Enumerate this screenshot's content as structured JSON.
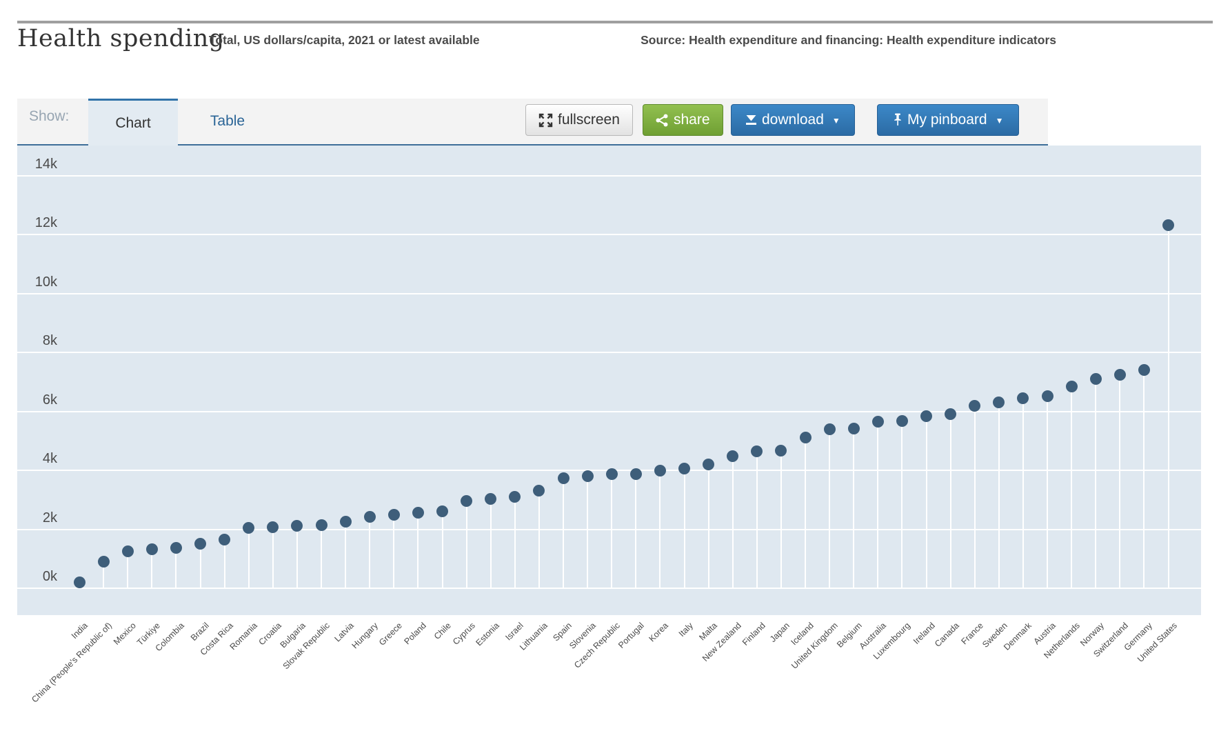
{
  "header": {
    "title": "Health spending",
    "subtitle": "Total, US dollars/capita, 2021 or latest available",
    "source": "Source: Health expenditure and financing: Health expenditure indicators"
  },
  "toolbar": {
    "show_label": "Show:",
    "tabs": {
      "chart": "Chart",
      "table": "Table"
    },
    "buttons": {
      "fullscreen": "fullscreen",
      "share": "share",
      "download": "download",
      "pinboard": "My pinboard"
    }
  },
  "colors": {
    "dot": "#3e5e7a",
    "plot_background": "#dfe8f0",
    "gridline": "#ffffff",
    "button_blue": "#2f74ad",
    "button_green": "#79ab3d",
    "tab_accent": "#3173a9"
  },
  "chart_data": {
    "type": "scatter",
    "title": "Health spending",
    "subtitle": "Total, US dollars/capita, 2021 or latest available",
    "unit": "US dollars/capita",
    "legend": "none",
    "grid": "horizontal",
    "ylim": [
      0,
      14000
    ],
    "yticks": [
      "0k",
      "2k",
      "4k",
      "6k",
      "8k",
      "10k",
      "12k",
      "14k"
    ],
    "categories": [
      "India",
      "China (People's Republic of)",
      "Mexico",
      "Türkiye",
      "Colombia",
      "Brazil",
      "Costa Rica",
      "Romania",
      "Croatia",
      "Bulgaria",
      "Slovak Republic",
      "Latvia",
      "Hungary",
      "Greece",
      "Poland",
      "Chile",
      "Cyprus",
      "Estonia",
      "Israel",
      "Lithuania",
      "Spain",
      "Slovenia",
      "Czech Republic",
      "Portugal",
      "Korea",
      "Italy",
      "Malta",
      "New Zealand",
      "Finland",
      "Japan",
      "Iceland",
      "United Kingdom",
      "Belgium",
      "Australia",
      "Luxembourg",
      "Ireland",
      "Canada",
      "France",
      "Sweden",
      "Denmark",
      "Austria",
      "Netherlands",
      "Norway",
      "Switzerland",
      "Germany",
      "United States"
    ],
    "values": [
      210,
      910,
      1240,
      1310,
      1360,
      1500,
      1640,
      2050,
      2080,
      2110,
      2130,
      2250,
      2410,
      2500,
      2570,
      2600,
      2970,
      3020,
      3090,
      3320,
      3740,
      3790,
      3860,
      3880,
      4000,
      4060,
      4210,
      4490,
      4650,
      4670,
      5100,
      5400,
      5410,
      5660,
      5680,
      5830,
      5900,
      6180,
      6310,
      6450,
      6520,
      6850,
      7100,
      7250,
      7410,
      12320
    ]
  }
}
